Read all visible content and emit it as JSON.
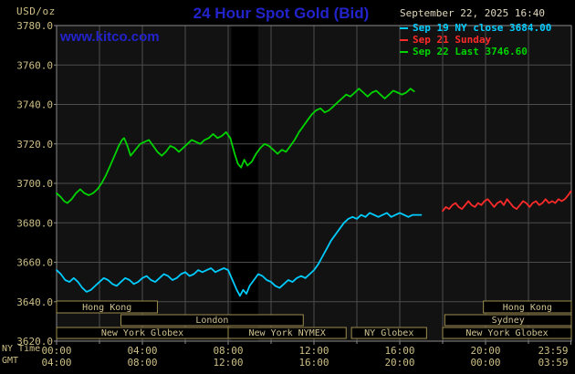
{
  "header": {
    "unit": "USD/oz",
    "title": "24 Hour Spot Gold (Bid)",
    "timestamp": "September 22, 2025 16:40",
    "watermark": "www.kitco.com"
  },
  "axis_labels": {
    "tz_top": "NY Time",
    "tz_bottom": "GMT"
  },
  "colors": {
    "background": "#000000",
    "plot_bg": "#121212",
    "band": "#000000",
    "grid": "#4d4d4d",
    "plot_border": "#8b8b8b",
    "axis_text": "#ccbe84",
    "timestamp_text": "#e0d8bc",
    "title_blue": "#2323cc",
    "session_border": "#9c8c4c",
    "session_text": "#cfc290"
  },
  "chart_data": {
    "type": "line",
    "title": "24 Hour Spot Gold (Bid)",
    "ylabel": "USD/oz",
    "x_range_hours": [
      0,
      24
    ],
    "grid": true,
    "legend_position": "top-right",
    "y_axis": {
      "min": 3620,
      "max": 3780,
      "step": 20,
      "ticks": [
        {
          "value": 3780,
          "label": "3780.0"
        },
        {
          "value": 3760,
          "label": "3760.0"
        },
        {
          "value": 3740,
          "label": "3740.0"
        },
        {
          "value": 3720,
          "label": "3720.0"
        },
        {
          "value": 3700,
          "label": "3700.0"
        },
        {
          "value": 3680,
          "label": "3680.0"
        },
        {
          "value": 3660,
          "label": "3660.0"
        },
        {
          "value": 3640,
          "label": "3640.0"
        },
        {
          "value": 3620,
          "label": "3620.0"
        }
      ]
    },
    "x_axis": {
      "ticks": [
        {
          "h": 0,
          "ny": "00:00",
          "gmt": "04:00"
        },
        {
          "h": 4,
          "ny": "04:00",
          "gmt": "08:00"
        },
        {
          "h": 8,
          "ny": "08:00",
          "gmt": "12:00"
        },
        {
          "h": 12,
          "ny": "12:00",
          "gmt": "16:00"
        },
        {
          "h": 16,
          "ny": "16:00",
          "gmt": "20:00"
        },
        {
          "h": 20,
          "ny": "20:00",
          "gmt": "00:00"
        },
        {
          "h": 23.98,
          "ny": "23:59",
          "gmt": "03:59"
        }
      ]
    },
    "band": {
      "start": 8.15,
      "end": 9.4
    },
    "series": [
      {
        "id": "sep19",
        "name": "Sep 19 NY close",
        "legend": "Sep 19 NY close 3684.00",
        "close": 3684.0,
        "color": "#00ccff",
        "points": [
          [
            0,
            3656
          ],
          [
            0.2,
            3654
          ],
          [
            0.4,
            3651
          ],
          [
            0.6,
            3650
          ],
          [
            0.8,
            3652
          ],
          [
            1,
            3650
          ],
          [
            1.2,
            3647
          ],
          [
            1.4,
            3645
          ],
          [
            1.6,
            3646
          ],
          [
            1.8,
            3648
          ],
          [
            2,
            3650
          ],
          [
            2.2,
            3652
          ],
          [
            2.4,
            3651
          ],
          [
            2.6,
            3649
          ],
          [
            2.8,
            3648
          ],
          [
            3,
            3650
          ],
          [
            3.2,
            3652
          ],
          [
            3.4,
            3651
          ],
          [
            3.6,
            3649
          ],
          [
            3.8,
            3650
          ],
          [
            4,
            3652
          ],
          [
            4.2,
            3653
          ],
          [
            4.4,
            3651
          ],
          [
            4.6,
            3650
          ],
          [
            4.8,
            3652
          ],
          [
            5,
            3654
          ],
          [
            5.2,
            3653
          ],
          [
            5.4,
            3651
          ],
          [
            5.6,
            3652
          ],
          [
            5.8,
            3654
          ],
          [
            6,
            3655
          ],
          [
            6.2,
            3653
          ],
          [
            6.4,
            3654
          ],
          [
            6.6,
            3656
          ],
          [
            6.8,
            3655
          ],
          [
            7,
            3656
          ],
          [
            7.2,
            3657
          ],
          [
            7.4,
            3655
          ],
          [
            7.6,
            3656
          ],
          [
            7.8,
            3657
          ],
          [
            8,
            3656
          ],
          [
            8.2,
            3651
          ],
          [
            8.4,
            3646
          ],
          [
            8.55,
            3643
          ],
          [
            8.7,
            3646
          ],
          [
            8.85,
            3644
          ],
          [
            9,
            3648
          ],
          [
            9.2,
            3651
          ],
          [
            9.4,
            3654
          ],
          [
            9.6,
            3653
          ],
          [
            9.8,
            3651
          ],
          [
            10,
            3650
          ],
          [
            10.2,
            3648
          ],
          [
            10.4,
            3647
          ],
          [
            10.6,
            3649
          ],
          [
            10.8,
            3651
          ],
          [
            11,
            3650
          ],
          [
            11.2,
            3652
          ],
          [
            11.4,
            3653
          ],
          [
            11.6,
            3652
          ],
          [
            11.8,
            3654
          ],
          [
            12,
            3656
          ],
          [
            12.2,
            3659
          ],
          [
            12.4,
            3663
          ],
          [
            12.6,
            3667
          ],
          [
            12.8,
            3671
          ],
          [
            13,
            3674
          ],
          [
            13.2,
            3677
          ],
          [
            13.4,
            3680
          ],
          [
            13.6,
            3682
          ],
          [
            13.8,
            3683
          ],
          [
            14,
            3682
          ],
          [
            14.2,
            3684
          ],
          [
            14.4,
            3683
          ],
          [
            14.6,
            3685
          ],
          [
            14.8,
            3684
          ],
          [
            15,
            3683
          ],
          [
            15.2,
            3684
          ],
          [
            15.4,
            3685
          ],
          [
            15.6,
            3683
          ],
          [
            15.8,
            3684
          ],
          [
            16,
            3685
          ],
          [
            16.2,
            3684
          ],
          [
            16.4,
            3683
          ],
          [
            16.6,
            3684
          ],
          [
            16.8,
            3684
          ],
          [
            17,
            3684
          ]
        ]
      },
      {
        "id": "sep21",
        "name": "Sep 21 Sunday",
        "legend": "Sep 21 Sunday",
        "color": "#ff2a2a",
        "points": [
          [
            18,
            3686
          ],
          [
            18.15,
            3688
          ],
          [
            18.3,
            3687
          ],
          [
            18.45,
            3689
          ],
          [
            18.6,
            3690
          ],
          [
            18.75,
            3688
          ],
          [
            18.9,
            3687
          ],
          [
            19.05,
            3689
          ],
          [
            19.2,
            3691
          ],
          [
            19.35,
            3689
          ],
          [
            19.5,
            3688
          ],
          [
            19.65,
            3690
          ],
          [
            19.8,
            3689
          ],
          [
            19.95,
            3691
          ],
          [
            20.1,
            3692
          ],
          [
            20.25,
            3690
          ],
          [
            20.4,
            3688
          ],
          [
            20.55,
            3690
          ],
          [
            20.7,
            3691
          ],
          [
            20.85,
            3689
          ],
          [
            21,
            3692
          ],
          [
            21.15,
            3690
          ],
          [
            21.3,
            3688
          ],
          [
            21.45,
            3687
          ],
          [
            21.6,
            3689
          ],
          [
            21.75,
            3691
          ],
          [
            21.9,
            3690
          ],
          [
            22.05,
            3688
          ],
          [
            22.2,
            3690
          ],
          [
            22.35,
            3691
          ],
          [
            22.5,
            3689
          ],
          [
            22.65,
            3690
          ],
          [
            22.8,
            3692
          ],
          [
            22.95,
            3690
          ],
          [
            23.1,
            3691
          ],
          [
            23.25,
            3690
          ],
          [
            23.4,
            3692
          ],
          [
            23.55,
            3691
          ],
          [
            23.7,
            3692
          ],
          [
            23.85,
            3694
          ],
          [
            23.98,
            3696
          ]
        ]
      },
      {
        "id": "sep22",
        "name": "Sep 22 Last",
        "legend": "Sep 22 Last 3746.60",
        "last": 3746.6,
        "color": "#00d400",
        "points": [
          [
            0,
            3695
          ],
          [
            0.2,
            3693
          ],
          [
            0.35,
            3691
          ],
          [
            0.5,
            3690
          ],
          [
            0.7,
            3692
          ],
          [
            0.9,
            3695
          ],
          [
            1.1,
            3697
          ],
          [
            1.3,
            3695
          ],
          [
            1.5,
            3694
          ],
          [
            1.7,
            3695
          ],
          [
            1.9,
            3697
          ],
          [
            2.1,
            3700
          ],
          [
            2.3,
            3704
          ],
          [
            2.5,
            3709
          ],
          [
            2.7,
            3714
          ],
          [
            2.9,
            3719
          ],
          [
            3.05,
            3722
          ],
          [
            3.15,
            3723
          ],
          [
            3.3,
            3719
          ],
          [
            3.45,
            3714
          ],
          [
            3.6,
            3716
          ],
          [
            3.75,
            3718
          ],
          [
            3.9,
            3720
          ],
          [
            4.1,
            3721
          ],
          [
            4.3,
            3722
          ],
          [
            4.5,
            3719
          ],
          [
            4.7,
            3716
          ],
          [
            4.9,
            3714
          ],
          [
            5.1,
            3716
          ],
          [
            5.3,
            3719
          ],
          [
            5.5,
            3718
          ],
          [
            5.7,
            3716
          ],
          [
            5.9,
            3718
          ],
          [
            6.1,
            3720
          ],
          [
            6.3,
            3722
          ],
          [
            6.5,
            3721
          ],
          [
            6.7,
            3720
          ],
          [
            6.9,
            3722
          ],
          [
            7.1,
            3723
          ],
          [
            7.3,
            3725
          ],
          [
            7.5,
            3723
          ],
          [
            7.7,
            3724
          ],
          [
            7.9,
            3726
          ],
          [
            8.1,
            3723
          ],
          [
            8.3,
            3715
          ],
          [
            8.45,
            3710
          ],
          [
            8.6,
            3708
          ],
          [
            8.75,
            3712
          ],
          [
            8.9,
            3709
          ],
          [
            9.1,
            3711
          ],
          [
            9.3,
            3715
          ],
          [
            9.5,
            3718
          ],
          [
            9.7,
            3720
          ],
          [
            9.9,
            3719
          ],
          [
            10.1,
            3717
          ],
          [
            10.3,
            3715
          ],
          [
            10.5,
            3717
          ],
          [
            10.7,
            3716
          ],
          [
            10.9,
            3719
          ],
          [
            11.1,
            3722
          ],
          [
            11.3,
            3726
          ],
          [
            11.5,
            3729
          ],
          [
            11.7,
            3732
          ],
          [
            11.9,
            3735
          ],
          [
            12.1,
            3737
          ],
          [
            12.3,
            3738
          ],
          [
            12.5,
            3736
          ],
          [
            12.7,
            3737
          ],
          [
            12.9,
            3739
          ],
          [
            13.1,
            3741
          ],
          [
            13.3,
            3743
          ],
          [
            13.5,
            3745
          ],
          [
            13.7,
            3744
          ],
          [
            13.9,
            3746
          ],
          [
            14.1,
            3748
          ],
          [
            14.3,
            3746
          ],
          [
            14.5,
            3744
          ],
          [
            14.7,
            3746
          ],
          [
            14.9,
            3747
          ],
          [
            15.1,
            3745
          ],
          [
            15.3,
            3743
          ],
          [
            15.5,
            3745
          ],
          [
            15.7,
            3747
          ],
          [
            15.9,
            3746
          ],
          [
            16.1,
            3745
          ],
          [
            16.3,
            3746
          ],
          [
            16.5,
            3748
          ],
          [
            16.67,
            3746.6
          ]
        ]
      }
    ],
    "sessions": [
      {
        "row": 0,
        "label": "Hong Kong",
        "start": 0,
        "end": 4.7
      },
      {
        "row": 0,
        "label": "Hong Kong",
        "start": 19.9,
        "end": 24
      },
      {
        "row": 1,
        "label": "London",
        "start": 3,
        "end": 11.5
      },
      {
        "row": 1,
        "label": "Sydney",
        "start": 18.1,
        "end": 24
      },
      {
        "row": 2,
        "label": "New York Globex",
        "start": 0,
        "end": 8
      },
      {
        "row": 2,
        "label": "New York NYMEX",
        "start": 8,
        "end": 13.5
      },
      {
        "row": 2,
        "label": "NY Globex",
        "start": 13.75,
        "end": 17.25
      },
      {
        "row": 2,
        "label": "New York Globex",
        "start": 18,
        "end": 24
      }
    ]
  }
}
